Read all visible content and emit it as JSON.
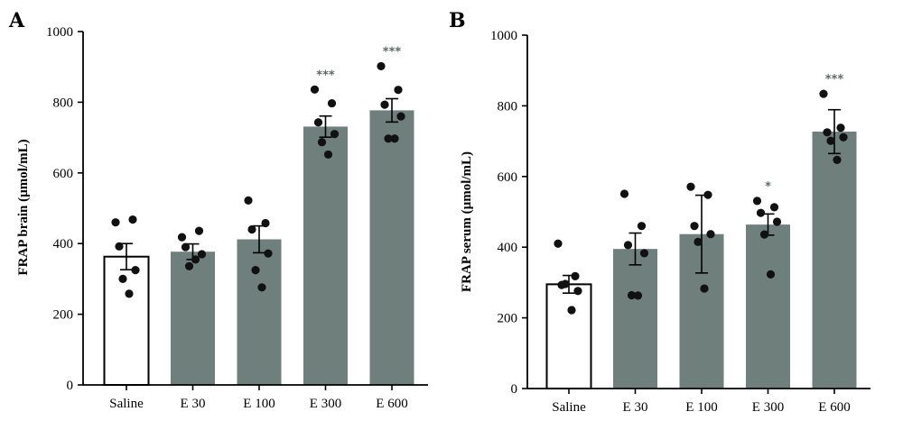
{
  "chart_data": [
    {
      "panel": "A",
      "type": "bar",
      "xlabel": "",
      "ylabel": "FRAP brain (µmol/mL)",
      "ylim": [
        0,
        1000
      ],
      "yticks": [
        0,
        200,
        400,
        600,
        800,
        1000
      ],
      "categories": [
        "Saline",
        "E 30",
        "E 100",
        "E 300",
        "E 600"
      ],
      "values": [
        363,
        377,
        412,
        731,
        777
      ],
      "errors": [
        37,
        22,
        38,
        30,
        33
      ],
      "significance": [
        "",
        "",
        "",
        "***",
        "***"
      ],
      "points": [
        [
          460,
          468,
          392,
          325,
          300,
          258
        ],
        [
          418,
          436,
          390,
          370,
          336,
          355
        ],
        [
          522,
          458,
          440,
          372,
          325,
          276
        ],
        [
          836,
          797,
          743,
          710,
          687,
          652
        ],
        [
          902,
          835,
          793,
          760,
          697,
          697
        ]
      ]
    },
    {
      "panel": "B",
      "type": "bar",
      "xlabel": "",
      "ylabel": "FRAP serum (µmol/mL)",
      "ylim": [
        0,
        1000
      ],
      "yticks": [
        0,
        200,
        400,
        600,
        800,
        1000
      ],
      "categories": [
        "Saline",
        "E 30",
        "E 100",
        "E 300",
        "E 600"
      ],
      "values": [
        295,
        395,
        437,
        464,
        727
      ],
      "errors": [
        25,
        45,
        110,
        30,
        62
      ],
      "significance": [
        "",
        "",
        "",
        "*",
        "***"
      ],
      "points": [
        [
          410,
          318,
          293,
          276,
          296,
          222
        ],
        [
          551,
          460,
          406,
          383,
          264,
          263
        ],
        [
          571,
          548,
          460,
          437,
          415,
          283
        ],
        [
          531,
          513,
          497,
          472,
          436,
          323
        ],
        [
          834,
          738,
          725,
          711,
          701,
          647
        ]
      ]
    }
  ],
  "colors": {
    "bar_saline": "#ffffff",
    "bar_treatment": "#6f7f7b",
    "significance": "#5c6b66",
    "axis": "#000000"
  }
}
